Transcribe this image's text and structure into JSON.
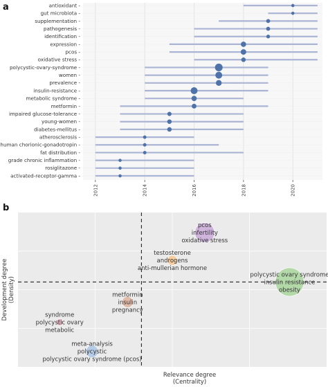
{
  "panel_a_letter": "a",
  "panel_b_letter": "b",
  "chart_data": [
    {
      "type": "scatter",
      "panel": "a",
      "x_ticks": [
        "2012",
        "2014",
        "2016",
        "2018",
        "2020"
      ],
      "xlim": [
        2011.5,
        2021.2
      ],
      "terms": [
        {
          "label": "antioxidant",
          "start": 2018,
          "peak": 2020,
          "end": 2021,
          "size": 1
        },
        {
          "label": "gut microbiota",
          "start": 2019,
          "peak": 2020,
          "end": 2021,
          "size": 1
        },
        {
          "label": "supplementation",
          "start": 2017,
          "peak": 2019,
          "end": 2021,
          "size": 1.3
        },
        {
          "label": "pathogenesis",
          "start": 2016,
          "peak": 2019,
          "end": 2021,
          "size": 1.3
        },
        {
          "label": "identification",
          "start": 2016,
          "peak": 2019,
          "end": 2021,
          "size": 1.2
        },
        {
          "label": "expression",
          "start": 2015,
          "peak": 2018,
          "end": 2021,
          "size": 1.8
        },
        {
          "label": "pcos",
          "start": 2015,
          "peak": 2018,
          "end": 2021,
          "size": 1.9
        },
        {
          "label": "oxidative stress",
          "start": 2016,
          "peak": 2018,
          "end": 2021,
          "size": 1.5
        },
        {
          "label": "polycystic-ovary-syndrome",
          "start": 2014,
          "peak": 2017,
          "end": 2019,
          "size": 2.7
        },
        {
          "label": "women",
          "start": 2014,
          "peak": 2017,
          "end": 2019,
          "size": 2.4
        },
        {
          "label": "prevalence",
          "start": 2014,
          "peak": 2017,
          "end": 2019,
          "size": 2.0
        },
        {
          "label": "insulin-resistance",
          "start": 2014,
          "peak": 2016,
          "end": 2019,
          "size": 2.4
        },
        {
          "label": "metabolic syndrome",
          "start": 2014,
          "peak": 2016,
          "end": 2018,
          "size": 1.8
        },
        {
          "label": "metformin",
          "start": 2013,
          "peak": 2016,
          "end": 2019,
          "size": 1.6
        },
        {
          "label": "impaired glucose-tolerance",
          "start": 2013,
          "peak": 2015,
          "end": 2018,
          "size": 1.4
        },
        {
          "label": "young-women",
          "start": 2013,
          "peak": 2015,
          "end": 2018,
          "size": 1.5
        },
        {
          "label": "diabetes-mellitus",
          "start": 2013,
          "peak": 2015,
          "end": 2018,
          "size": 1.5
        },
        {
          "label": "atherosclerosis",
          "start": 2012,
          "peak": 2014,
          "end": 2016,
          "size": 1.1
        },
        {
          "label": "human chorionic-gonadotropin",
          "start": 2012,
          "peak": 2014,
          "end": 2017,
          "size": 1.1
        },
        {
          "label": "fat distribution",
          "start": 2012,
          "peak": 2014,
          "end": 2018,
          "size": 1.1
        },
        {
          "label": "grade chronic inflammation",
          "start": 2012,
          "peak": 2013,
          "end": 2016,
          "size": 1.0
        },
        {
          "label": "rosiglitazone",
          "start": 2012,
          "peak": 2013,
          "end": 2016,
          "size": 1.0
        },
        {
          "label": "activated-receptor-gamma",
          "start": 2012,
          "peak": 2013,
          "end": 2016,
          "size": 1.0
        }
      ],
      "colors": {
        "line": "#aab4d4",
        "dot": "#4f73a8",
        "background": "#f7f7f7",
        "grid": "#e4e4e4"
      }
    },
    {
      "type": "scatter",
      "panel": "b",
      "xlabel": "Relevance degree\n(Centrality)",
      "ylabel": "Development degree\n(Density)",
      "xlim": [
        0,
        1
      ],
      "ylim": [
        0,
        1
      ],
      "quadrant_divider": {
        "x": 0.4,
        "y": 0.55
      },
      "grid": true,
      "clusters": [
        {
          "terms": [
            "pcos",
            "infertility",
            "oxidative stress"
          ],
          "x": 0.605,
          "y": 0.87,
          "radius": 0.32,
          "color": "#c8a8d8"
        },
        {
          "terms": [
            "testosterone",
            "androgens",
            "anti-mullerian hormone"
          ],
          "x": 0.5,
          "y": 0.69,
          "radius": 0.16,
          "color": "#f5c48e"
        },
        {
          "terms": [
            "polycystic ovary syndrome",
            "insulin resistance",
            "obesity"
          ],
          "x": 0.88,
          "y": 0.55,
          "radius": 0.46,
          "color": "#a6d49a"
        },
        {
          "terms": [
            "metformin",
            "insulin",
            "pregnancy"
          ],
          "x": 0.355,
          "y": 0.42,
          "radius": 0.18,
          "color": "#ddb09a"
        },
        {
          "terms": [
            "syndrome",
            "polycystic ovary",
            "metabolic"
          ],
          "x": 0.135,
          "y": 0.29,
          "radius": 0.11,
          "color": "#e4a4b4"
        },
        {
          "terms": [
            "meta-analysis",
            "polycystic",
            "polycystic ovary syndrome (pcos)"
          ],
          "x": 0.24,
          "y": 0.1,
          "radius": 0.2,
          "color": "#a9c4e4"
        }
      ],
      "colors": {
        "background": "#ebebeb",
        "grid": "#ffffff",
        "divider": "#222222"
      }
    }
  ]
}
